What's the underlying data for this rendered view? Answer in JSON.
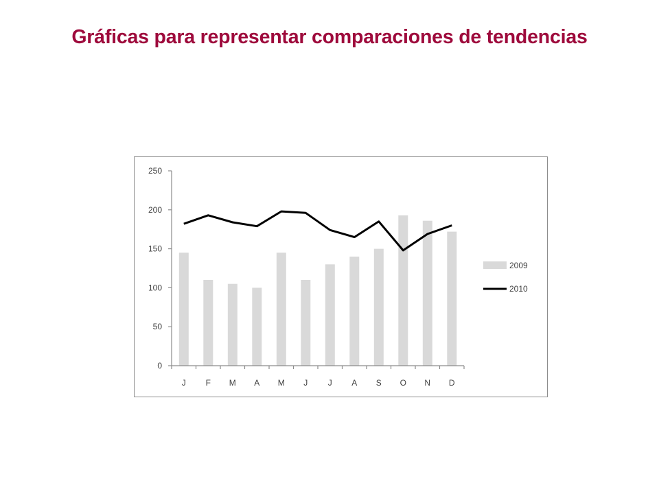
{
  "slide": {
    "title": "Gráficas para representar comparaciones de tendencias"
  },
  "colors": {
    "title": "#9e0a3c",
    "bar_2009": "#d9d9d9",
    "line_2010": "#000000",
    "axis": "#8c8c8c",
    "frame": "#8c8c8c",
    "text": "#404040"
  },
  "chart_data": {
    "type": "bar+line",
    "title": "",
    "xlabel": "",
    "ylabel": "",
    "categories": [
      "J",
      "F",
      "M",
      "A",
      "M",
      "J",
      "J",
      "A",
      "S",
      "O",
      "N",
      "D"
    ],
    "ylim": [
      0,
      250
    ],
    "yticks": [
      0,
      50,
      100,
      150,
      200,
      250
    ],
    "grid": false,
    "legend_position": "right",
    "series": [
      {
        "name": "2009",
        "type": "bar",
        "values": [
          145,
          110,
          105,
          100,
          145,
          110,
          130,
          140,
          150,
          193,
          186,
          172
        ]
      },
      {
        "name": "2010",
        "type": "line",
        "values": [
          182,
          193,
          184,
          179,
          198,
          196,
          174,
          165,
          185,
          148,
          169,
          180
        ]
      }
    ]
  }
}
